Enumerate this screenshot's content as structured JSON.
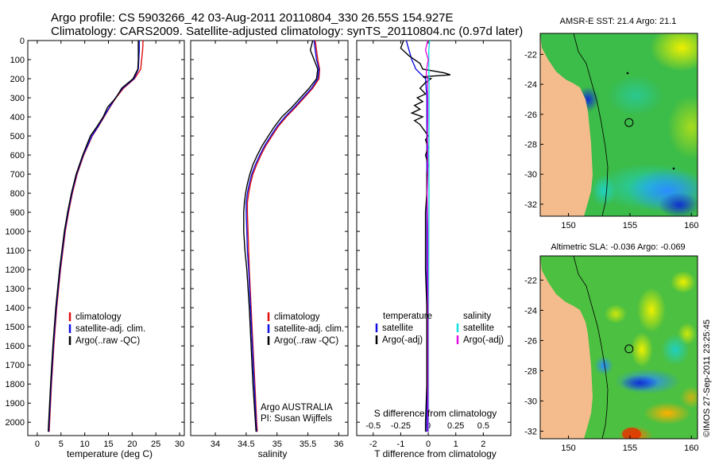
{
  "figure": {
    "title_line1": "Argo profile: CS 5903266_42 03-Aug-2011 20110804_330 26.55S 154.927E",
    "title_line2": "Climatology: CARS2009. Satellite-adjusted climatology: synTS_20110804.nc (0.97d later)",
    "side_stamp": "©IMOS 27-Sep-2011 23:25:45",
    "depth_ticks": [
      "0",
      "100",
      "200",
      "300",
      "400",
      "500",
      "600",
      "700",
      "800",
      "900",
      "1000",
      "1100",
      "1200",
      "1300",
      "1400",
      "1500",
      "1600",
      "1700",
      "1800",
      "1900",
      "2000"
    ],
    "colors": {
      "climatology": "#e01010",
      "satellite": "#1010e0",
      "argo": "#000000",
      "salinity_sat": "#10e0e0",
      "salinity_argo": "#e010e0"
    }
  },
  "chart_data": [
    {
      "type": "line",
      "xlabel": "temperature (deg C)",
      "xlim": [
        -2,
        31
      ],
      "ylim": [
        0,
        2070
      ],
      "yaxis_reversed": true,
      "xticks": [
        "0",
        "5",
        "10",
        "15",
        "20",
        "25",
        "30"
      ],
      "legend": [
        "climatology",
        "satellite-adj. clim.",
        "Argo(..raw -QC)"
      ],
      "legend_position": "lower-center",
      "series": [
        {
          "name": "climatology",
          "depth": [
            0,
            50,
            100,
            150,
            200,
            250,
            300,
            350,
            400,
            450,
            500,
            600,
            700,
            800,
            900,
            1000,
            1200,
            1400,
            1600,
            1800,
            2000,
            2050
          ],
          "values": [
            22.3,
            22.2,
            22.0,
            21.8,
            20.5,
            18.2,
            16.6,
            15.3,
            14.1,
            12.9,
            11.6,
            9.8,
            8.4,
            7.4,
            6.6,
            5.9,
            4.9,
            4.1,
            3.5,
            3.0,
            2.6,
            2.5
          ]
        },
        {
          "name": "satellite-adj. clim.",
          "depth": [
            0,
            50,
            100,
            150,
            200,
            250,
            300,
            350,
            400,
            450,
            500,
            600,
            700,
            800,
            900,
            1000,
            1200,
            1400,
            1600,
            1800,
            2000,
            2050
          ],
          "values": [
            21.5,
            21.5,
            21.4,
            21.3,
            20.4,
            18.0,
            16.5,
            15.2,
            14.0,
            12.8,
            11.5,
            9.7,
            8.3,
            7.3,
            6.5,
            5.8,
            4.8,
            4.0,
            3.4,
            2.9,
            2.5,
            2.4
          ]
        },
        {
          "name": "Argo(..raw -QC)",
          "depth": [
            0,
            50,
            100,
            150,
            200,
            250,
            300,
            350,
            400,
            450,
            500,
            600,
            700,
            800,
            900,
            1000,
            1200,
            1400,
            1600,
            1800,
            2000,
            2050
          ],
          "values": [
            21.3,
            21.3,
            21.3,
            21.2,
            20.2,
            17.8,
            16.6,
            14.8,
            13.9,
            12.6,
            11.2,
            9.6,
            8.2,
            7.2,
            6.4,
            5.7,
            4.7,
            3.9,
            3.3,
            2.8,
            2.4,
            2.3
          ]
        }
      ]
    },
    {
      "type": "line",
      "xlabel": "salinity",
      "xlim": [
        33.6,
        36.15
      ],
      "ylim": [
        0,
        2070
      ],
      "yaxis_reversed": true,
      "xticks": [
        "34",
        "34.5",
        "35",
        "35.5",
        "36"
      ],
      "legend": [
        "climatology",
        "satellite-adj. clim.",
        "Argo(..raw -QC)"
      ],
      "legend_position": "lower-right",
      "annotation_line1": "Argo AUSTRALIA",
      "annotation_line2": "PI: Susan Wijffels",
      "series": [
        {
          "name": "climatology",
          "depth": [
            0,
            50,
            100,
            150,
            200,
            250,
            300,
            350,
            400,
            450,
            500,
            550,
            600,
            650,
            700,
            750,
            800,
            850,
            900,
            1000,
            1100,
            1200,
            1400,
            1600,
            1800,
            2000,
            2050
          ],
          "values": [
            35.62,
            35.64,
            35.66,
            35.69,
            35.68,
            35.58,
            35.44,
            35.3,
            35.15,
            35.02,
            34.92,
            34.82,
            34.74,
            34.67,
            34.61,
            34.57,
            34.54,
            34.52,
            34.52,
            34.53,
            34.54,
            34.55,
            34.58,
            34.61,
            34.64,
            34.67,
            34.68
          ]
        },
        {
          "name": "satellite-adj. clim.",
          "depth": [
            0,
            50,
            100,
            150,
            200,
            250,
            300,
            350,
            400,
            450,
            500,
            550,
            600,
            650,
            700,
            750,
            800,
            850,
            900,
            1000,
            1100,
            1200,
            1400,
            1600,
            1800,
            2000,
            2050
          ],
          "values": [
            35.6,
            35.62,
            35.64,
            35.68,
            35.66,
            35.56,
            35.42,
            35.28,
            35.13,
            35.0,
            34.9,
            34.8,
            34.72,
            34.65,
            34.59,
            34.55,
            34.52,
            34.5,
            34.5,
            34.51,
            34.52,
            34.54,
            34.57,
            34.6,
            34.63,
            34.66,
            34.67
          ]
        },
        {
          "name": "Argo(..raw -QC)",
          "depth": [
            0,
            50,
            100,
            150,
            200,
            250,
            300,
            350,
            400,
            450,
            500,
            550,
            600,
            650,
            700,
            750,
            800,
            850,
            900,
            1000,
            1100,
            1200,
            1400,
            1600,
            1800,
            2000,
            2050
          ],
          "values": [
            35.58,
            35.54,
            35.6,
            35.66,
            35.64,
            35.52,
            35.38,
            35.24,
            35.08,
            34.96,
            34.86,
            34.76,
            34.68,
            34.61,
            34.56,
            34.52,
            34.49,
            34.47,
            34.46,
            34.46,
            34.48,
            34.51,
            34.55,
            34.58,
            34.61,
            34.65,
            34.66
          ]
        }
      ]
    },
    {
      "type": "line",
      "xlabel": "T difference from climatology",
      "xlabel_top": "S difference from climatology",
      "xlim": [
        -2.6,
        3.0
      ],
      "ylim": [
        0,
        2070
      ],
      "yaxis_reversed": true,
      "xticks": [
        "-2",
        "-1",
        "0",
        "1",
        "2"
      ],
      "xticks_top": [
        "-0.5",
        "-0.25",
        "0",
        "0.25",
        "0.5"
      ],
      "legend_header_left": "temperature",
      "legend_header_right": "salinity",
      "legend": [
        "satellite",
        "Argo(-adj)",
        "satellite",
        "Argo(-adj)"
      ],
      "legend_position": "lower-center",
      "series": [
        {
          "name": "temperature satellite",
          "depth": [
            0,
            50,
            100,
            150,
            200,
            300,
            400,
            600,
            800,
            1000,
            1400,
            2000,
            2050
          ],
          "values": [
            -0.8,
            -0.7,
            -0.6,
            -0.45,
            -0.1,
            -0.05,
            -0.05,
            -0.05,
            -0.05,
            -0.05,
            -0.05,
            -0.05,
            -0.05
          ]
        },
        {
          "name": "temperature Argo(-adj)",
          "depth": [
            0,
            40,
            80,
            120,
            150,
            170,
            180,
            190,
            200,
            220,
            250,
            280,
            300,
            320,
            340,
            360,
            380,
            400,
            420,
            440,
            460,
            480,
            500,
            520,
            560,
            600,
            650,
            700,
            800,
            900,
            1000,
            1200,
            1400,
            1600,
            1800,
            2000,
            2050
          ],
          "values": [
            -0.9,
            -1.0,
            -0.7,
            -0.3,
            -0.2,
            0.6,
            0.8,
            -0.2,
            0.1,
            -0.1,
            -0.3,
            -0.1,
            -0.4,
            -0.2,
            -0.5,
            -0.3,
            -0.6,
            -0.2,
            -0.5,
            -0.3,
            -0.2,
            -0.1,
            0.0,
            -0.1,
            0.0,
            -0.1,
            0.0,
            -0.05,
            -0.05,
            -0.1,
            -0.1,
            -0.1,
            -0.05,
            -0.05,
            -0.05,
            -0.1,
            -0.1
          ]
        },
        {
          "name": "salinity satellite",
          "depth": [
            0,
            50,
            100,
            150,
            200,
            300,
            400,
            600,
            800,
            1000,
            1400,
            2000,
            2050
          ],
          "values": [
            0.05,
            0.02,
            0.02,
            0.02,
            0.03,
            0.03,
            0.03,
            0.02,
            0.03,
            0.02,
            0.01,
            0.01,
            0.01
          ]
        },
        {
          "name": "salinity Argo(-adj)",
          "depth": [
            0,
            50,
            100,
            150,
            180,
            200,
            250,
            300,
            400,
            500,
            600,
            700,
            800,
            900,
            1000,
            1200,
            1400,
            1600,
            1800,
            2000,
            2050
          ],
          "values": [
            -0.02,
            -0.1,
            0.0,
            -0.06,
            -0.07,
            -0.02,
            -0.03,
            -0.02,
            -0.02,
            -0.03,
            -0.02,
            -0.02,
            -0.04,
            -0.03,
            -0.02,
            -0.02,
            -0.01,
            -0.01,
            -0.01,
            -0.01,
            -0.01
          ]
        }
      ]
    },
    {
      "type": "heatmap",
      "title": "AMSR-E SST: 21.4  Argo: 21.1",
      "xticks": [
        "150",
        "155",
        "160"
      ],
      "yticks": [
        "-22",
        "-24",
        "-26",
        "-28",
        "-30",
        "-32"
      ],
      "xlim": [
        147.7,
        160.5
      ],
      "ylim": [
        -32.8,
        -20.6
      ],
      "float_marker": {
        "lon": 154.927,
        "lat": -26.55
      }
    },
    {
      "type": "heatmap",
      "title": "Altimetric SLA: -0.036  Argo: -0.069",
      "xticks": [
        "150",
        "155",
        "160"
      ],
      "yticks": [
        "-22",
        "-24",
        "-26",
        "-28",
        "-30",
        "-32"
      ],
      "xlim": [
        147.7,
        160.5
      ],
      "ylim": [
        -32.5,
        -20.4
      ],
      "float_marker": {
        "lon": 154.927,
        "lat": -26.55
      }
    }
  ]
}
